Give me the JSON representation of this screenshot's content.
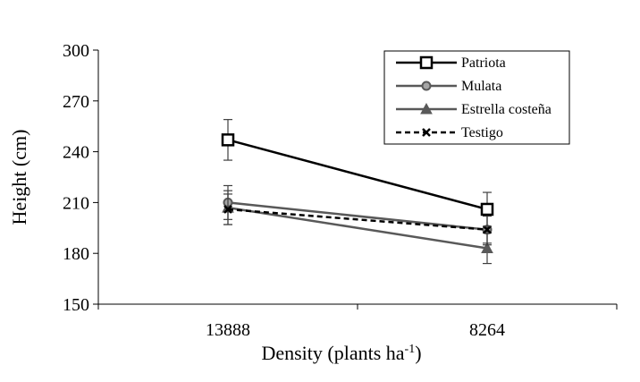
{
  "chart_data": {
    "type": "line",
    "categories": [
      "13888",
      "8264"
    ],
    "xlabel": "Density (plants ha",
    "xlabel_sup": "-1",
    "xlabel_end": ")",
    "ylabel": "Height (cm)",
    "ylim": [
      150,
      300
    ],
    "yticks": [
      150,
      180,
      210,
      240,
      270,
      300
    ],
    "ytick_labels": [
      "150",
      "180",
      "210",
      "240",
      "270",
      "300"
    ],
    "grid": false,
    "legend_position": "top-right",
    "series": [
      {
        "name": "Patriota",
        "values": [
          247,
          206
        ],
        "errors": [
          12,
          10
        ],
        "color": "#000000",
        "marker": "open-square",
        "line_style": "solid"
      },
      {
        "name": "Mulata",
        "values": [
          210,
          194
        ],
        "errors": [
          10,
          8
        ],
        "color": "#595959",
        "marker": "circle",
        "line_style": "solid"
      },
      {
        "name": "Estrella costeña",
        "values": [
          207,
          183
        ],
        "errors": [
          10,
          9
        ],
        "color": "#595959",
        "marker": "triangle",
        "line_style": "solid"
      },
      {
        "name": "Testigo",
        "values": [
          206,
          194
        ],
        "errors": [
          9,
          9
        ],
        "color": "#000000",
        "marker": "x",
        "line_style": "dashed"
      }
    ]
  }
}
